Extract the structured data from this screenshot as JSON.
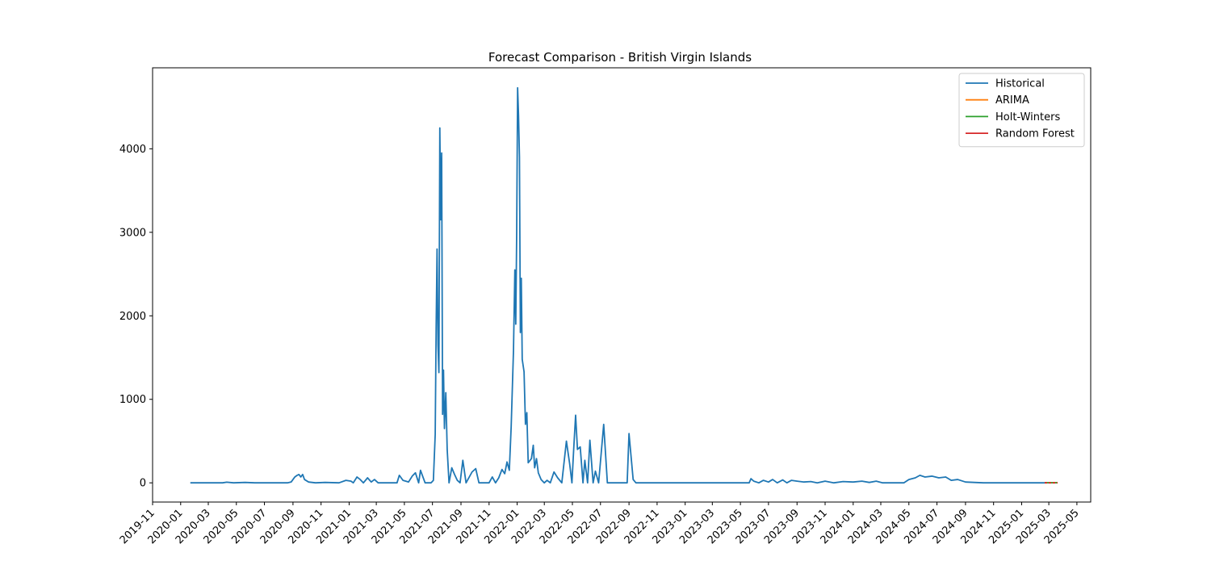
{
  "chart_data": {
    "type": "line",
    "title": "Forecast Comparison - British Virgin Islands",
    "xlabel": "",
    "ylabel": "",
    "xlim": [
      "2019-11-01",
      "2025-05-31"
    ],
    "ylim": [
      -230,
      4970
    ],
    "y_ticks": [
      0,
      1000,
      2000,
      3000,
      4000
    ],
    "x_ticks": [
      "2019-11",
      "2020-01",
      "2020-03",
      "2020-05",
      "2020-07",
      "2020-09",
      "2020-11",
      "2021-01",
      "2021-03",
      "2021-05",
      "2021-07",
      "2021-09",
      "2021-11",
      "2022-01",
      "2022-03",
      "2022-05",
      "2022-07",
      "2022-09",
      "2022-11",
      "2023-01",
      "2023-03",
      "2023-05",
      "2023-07",
      "2023-09",
      "2023-11",
      "2024-01",
      "2024-03",
      "2024-05",
      "2024-07",
      "2024-09",
      "2024-11",
      "2025-01",
      "2025-03",
      "2025-05"
    ],
    "grid": false,
    "legend_position": "top-right",
    "series": [
      {
        "name": "Historical",
        "color": "#1f77b4",
        "points": [
          [
            "2020-01-22",
            0
          ],
          [
            "2020-04-01",
            0
          ],
          [
            "2020-04-10",
            8
          ],
          [
            "2020-04-25",
            0
          ],
          [
            "2020-05-20",
            5
          ],
          [
            "2020-06-10",
            0
          ],
          [
            "2020-08-20",
            0
          ],
          [
            "2020-08-28",
            10
          ],
          [
            "2020-09-05",
            70
          ],
          [
            "2020-09-10",
            90
          ],
          [
            "2020-09-14",
            100
          ],
          [
            "2020-09-18",
            70
          ],
          [
            "2020-09-22",
            100
          ],
          [
            "2020-09-26",
            40
          ],
          [
            "2020-10-05",
            10
          ],
          [
            "2020-10-20",
            0
          ],
          [
            "2020-11-10",
            5
          ],
          [
            "2020-12-10",
            0
          ],
          [
            "2020-12-25",
            30
          ],
          [
            "2021-01-05",
            20
          ],
          [
            "2021-01-10",
            0
          ],
          [
            "2021-01-18",
            70
          ],
          [
            "2021-01-25",
            40
          ],
          [
            "2021-02-01",
            0
          ],
          [
            "2021-02-10",
            60
          ],
          [
            "2021-02-18",
            10
          ],
          [
            "2021-02-25",
            40
          ],
          [
            "2021-03-05",
            0
          ],
          [
            "2021-04-15",
            0
          ],
          [
            "2021-04-20",
            90
          ],
          [
            "2021-04-28",
            30
          ],
          [
            "2021-05-10",
            10
          ],
          [
            "2021-05-18",
            80
          ],
          [
            "2021-05-25",
            120
          ],
          [
            "2021-06-01",
            0
          ],
          [
            "2021-06-05",
            150
          ],
          [
            "2021-06-15",
            0
          ],
          [
            "2021-06-28",
            0
          ],
          [
            "2021-07-03",
            30
          ],
          [
            "2021-07-07",
            580
          ],
          [
            "2021-07-09",
            1850
          ],
          [
            "2021-07-11",
            2800
          ],
          [
            "2021-07-13",
            1650
          ],
          [
            "2021-07-15",
            1320
          ],
          [
            "2021-07-17",
            4250
          ],
          [
            "2021-07-19",
            3150
          ],
          [
            "2021-07-21",
            3950
          ],
          [
            "2021-07-23",
            820
          ],
          [
            "2021-07-25",
            1350
          ],
          [
            "2021-07-27",
            650
          ],
          [
            "2021-07-30",
            1080
          ],
          [
            "2021-08-02",
            400
          ],
          [
            "2021-08-06",
            0
          ],
          [
            "2021-08-12",
            180
          ],
          [
            "2021-08-18",
            100
          ],
          [
            "2021-08-24",
            30
          ],
          [
            "2021-08-30",
            0
          ],
          [
            "2021-09-05",
            270
          ],
          [
            "2021-09-12",
            0
          ],
          [
            "2021-09-25",
            130
          ],
          [
            "2021-10-03",
            170
          ],
          [
            "2021-10-10",
            0
          ],
          [
            "2021-11-01",
            0
          ],
          [
            "2021-11-08",
            70
          ],
          [
            "2021-11-15",
            0
          ],
          [
            "2021-11-22",
            60
          ],
          [
            "2021-11-29",
            160
          ],
          [
            "2021-12-05",
            110
          ],
          [
            "2021-12-10",
            250
          ],
          [
            "2021-12-15",
            150
          ],
          [
            "2021-12-19",
            670
          ],
          [
            "2021-12-24",
            1580
          ],
          [
            "2021-12-27",
            2550
          ],
          [
            "2021-12-29",
            1900
          ],
          [
            "2021-12-31",
            3000
          ],
          [
            "2022-01-02",
            4730
          ],
          [
            "2022-01-04",
            4400
          ],
          [
            "2022-01-06",
            3900
          ],
          [
            "2022-01-08",
            1800
          ],
          [
            "2022-01-10",
            2450
          ],
          [
            "2022-01-12",
            1480
          ],
          [
            "2022-01-16",
            1330
          ],
          [
            "2022-01-19",
            700
          ],
          [
            "2022-01-22",
            840
          ],
          [
            "2022-01-25",
            240
          ],
          [
            "2022-02-01",
            290
          ],
          [
            "2022-02-05",
            450
          ],
          [
            "2022-02-08",
            180
          ],
          [
            "2022-02-12",
            290
          ],
          [
            "2022-02-16",
            120
          ],
          [
            "2022-02-22",
            40
          ],
          [
            "2022-03-01",
            0
          ],
          [
            "2022-03-07",
            30
          ],
          [
            "2022-03-14",
            0
          ],
          [
            "2022-03-22",
            130
          ],
          [
            "2022-03-30",
            60
          ],
          [
            "2022-04-08",
            0
          ],
          [
            "2022-04-18",
            500
          ],
          [
            "2022-04-25",
            230
          ],
          [
            "2022-04-30",
            0
          ],
          [
            "2022-05-04",
            420
          ],
          [
            "2022-05-08",
            810
          ],
          [
            "2022-05-12",
            400
          ],
          [
            "2022-05-18",
            430
          ],
          [
            "2022-05-24",
            0
          ],
          [
            "2022-05-28",
            270
          ],
          [
            "2022-06-03",
            0
          ],
          [
            "2022-06-08",
            510
          ],
          [
            "2022-06-15",
            0
          ],
          [
            "2022-06-20",
            140
          ],
          [
            "2022-06-27",
            0
          ],
          [
            "2022-07-08",
            700
          ],
          [
            "2022-07-16",
            0
          ],
          [
            "2022-08-28",
            0
          ],
          [
            "2022-09-01",
            590
          ],
          [
            "2022-09-10",
            40
          ],
          [
            "2022-09-16",
            0
          ],
          [
            "2023-05-20",
            0
          ],
          [
            "2023-05-24",
            50
          ],
          [
            "2023-05-30",
            20
          ],
          [
            "2023-06-10",
            0
          ],
          [
            "2023-06-20",
            30
          ],
          [
            "2023-07-01",
            10
          ],
          [
            "2023-07-10",
            40
          ],
          [
            "2023-07-20",
            0
          ],
          [
            "2023-08-01",
            35
          ],
          [
            "2023-08-10",
            0
          ],
          [
            "2023-08-20",
            30
          ],
          [
            "2023-09-01",
            20
          ],
          [
            "2023-09-15",
            10
          ],
          [
            "2023-10-01",
            15
          ],
          [
            "2023-10-15",
            0
          ],
          [
            "2023-11-01",
            20
          ],
          [
            "2023-11-20",
            0
          ],
          [
            "2023-12-10",
            15
          ],
          [
            "2024-01-01",
            10
          ],
          [
            "2024-01-20",
            20
          ],
          [
            "2024-02-05",
            5
          ],
          [
            "2024-02-20",
            20
          ],
          [
            "2024-03-05",
            0
          ],
          [
            "2024-04-20",
            0
          ],
          [
            "2024-05-01",
            40
          ],
          [
            "2024-05-15",
            60
          ],
          [
            "2024-05-25",
            90
          ],
          [
            "2024-06-05",
            70
          ],
          [
            "2024-06-20",
            80
          ],
          [
            "2024-07-05",
            60
          ],
          [
            "2024-07-20",
            70
          ],
          [
            "2024-08-01",
            30
          ],
          [
            "2024-08-15",
            40
          ],
          [
            "2024-09-01",
            10
          ],
          [
            "2024-09-20",
            5
          ],
          [
            "2024-10-10",
            0
          ],
          [
            "2025-02-20",
            0
          ]
        ]
      },
      {
        "name": "ARIMA",
        "color": "#ff7f0e",
        "points": [
          [
            "2025-02-20",
            2
          ],
          [
            "2025-03-20",
            2
          ]
        ]
      },
      {
        "name": "Holt-Winters",
        "color": "#2ca02c",
        "points": [
          [
            "2025-02-20",
            1
          ],
          [
            "2025-03-20",
            1
          ]
        ]
      },
      {
        "name": "Random Forest",
        "color": "#d62728",
        "dashed": true,
        "points": [
          [
            "2025-02-20",
            0
          ],
          [
            "2025-03-20",
            0
          ]
        ]
      }
    ]
  }
}
